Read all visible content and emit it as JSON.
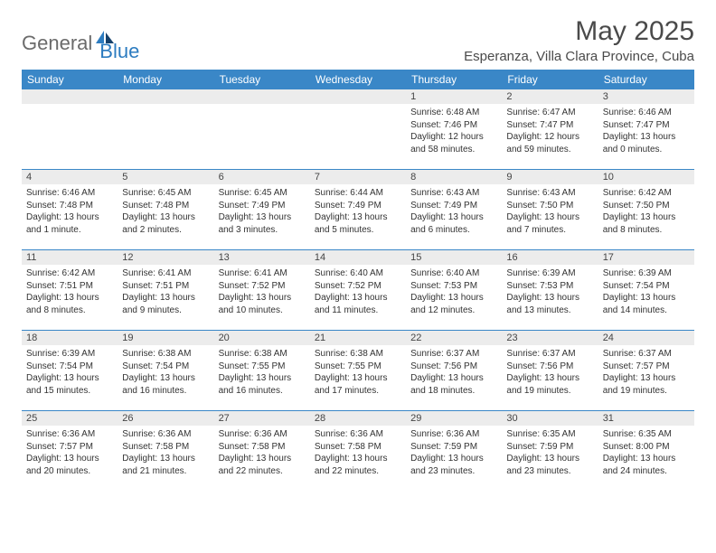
{
  "logo": {
    "text1": "General",
    "text2": "Blue"
  },
  "title": "May 2025",
  "location": "Esperanza, Villa Clara Province, Cuba",
  "colors": {
    "header_bg": "#3a87c7",
    "header_fg": "#ffffff",
    "row_divider": "#3a87c7",
    "daynum_bg": "#ececec",
    "logo_gray": "#6b6b6b",
    "logo_blue": "#2d7cc0",
    "title_color": "#4a4a4a"
  },
  "weekdays": [
    "Sunday",
    "Monday",
    "Tuesday",
    "Wednesday",
    "Thursday",
    "Friday",
    "Saturday"
  ],
  "weeks": [
    [
      {
        "n": "",
        "sr": "",
        "ss": "",
        "dl": ""
      },
      {
        "n": "",
        "sr": "",
        "ss": "",
        "dl": ""
      },
      {
        "n": "",
        "sr": "",
        "ss": "",
        "dl": ""
      },
      {
        "n": "",
        "sr": "",
        "ss": "",
        "dl": ""
      },
      {
        "n": "1",
        "sr": "Sunrise: 6:48 AM",
        "ss": "Sunset: 7:46 PM",
        "dl": "Daylight: 12 hours and 58 minutes."
      },
      {
        "n": "2",
        "sr": "Sunrise: 6:47 AM",
        "ss": "Sunset: 7:47 PM",
        "dl": "Daylight: 12 hours and 59 minutes."
      },
      {
        "n": "3",
        "sr": "Sunrise: 6:46 AM",
        "ss": "Sunset: 7:47 PM",
        "dl": "Daylight: 13 hours and 0 minutes."
      }
    ],
    [
      {
        "n": "4",
        "sr": "Sunrise: 6:46 AM",
        "ss": "Sunset: 7:48 PM",
        "dl": "Daylight: 13 hours and 1 minute."
      },
      {
        "n": "5",
        "sr": "Sunrise: 6:45 AM",
        "ss": "Sunset: 7:48 PM",
        "dl": "Daylight: 13 hours and 2 minutes."
      },
      {
        "n": "6",
        "sr": "Sunrise: 6:45 AM",
        "ss": "Sunset: 7:49 PM",
        "dl": "Daylight: 13 hours and 3 minutes."
      },
      {
        "n": "7",
        "sr": "Sunrise: 6:44 AM",
        "ss": "Sunset: 7:49 PM",
        "dl": "Daylight: 13 hours and 5 minutes."
      },
      {
        "n": "8",
        "sr": "Sunrise: 6:43 AM",
        "ss": "Sunset: 7:49 PM",
        "dl": "Daylight: 13 hours and 6 minutes."
      },
      {
        "n": "9",
        "sr": "Sunrise: 6:43 AM",
        "ss": "Sunset: 7:50 PM",
        "dl": "Daylight: 13 hours and 7 minutes."
      },
      {
        "n": "10",
        "sr": "Sunrise: 6:42 AM",
        "ss": "Sunset: 7:50 PM",
        "dl": "Daylight: 13 hours and 8 minutes."
      }
    ],
    [
      {
        "n": "11",
        "sr": "Sunrise: 6:42 AM",
        "ss": "Sunset: 7:51 PM",
        "dl": "Daylight: 13 hours and 8 minutes."
      },
      {
        "n": "12",
        "sr": "Sunrise: 6:41 AM",
        "ss": "Sunset: 7:51 PM",
        "dl": "Daylight: 13 hours and 9 minutes."
      },
      {
        "n": "13",
        "sr": "Sunrise: 6:41 AM",
        "ss": "Sunset: 7:52 PM",
        "dl": "Daylight: 13 hours and 10 minutes."
      },
      {
        "n": "14",
        "sr": "Sunrise: 6:40 AM",
        "ss": "Sunset: 7:52 PM",
        "dl": "Daylight: 13 hours and 11 minutes."
      },
      {
        "n": "15",
        "sr": "Sunrise: 6:40 AM",
        "ss": "Sunset: 7:53 PM",
        "dl": "Daylight: 13 hours and 12 minutes."
      },
      {
        "n": "16",
        "sr": "Sunrise: 6:39 AM",
        "ss": "Sunset: 7:53 PM",
        "dl": "Daylight: 13 hours and 13 minutes."
      },
      {
        "n": "17",
        "sr": "Sunrise: 6:39 AM",
        "ss": "Sunset: 7:54 PM",
        "dl": "Daylight: 13 hours and 14 minutes."
      }
    ],
    [
      {
        "n": "18",
        "sr": "Sunrise: 6:39 AM",
        "ss": "Sunset: 7:54 PM",
        "dl": "Daylight: 13 hours and 15 minutes."
      },
      {
        "n": "19",
        "sr": "Sunrise: 6:38 AM",
        "ss": "Sunset: 7:54 PM",
        "dl": "Daylight: 13 hours and 16 minutes."
      },
      {
        "n": "20",
        "sr": "Sunrise: 6:38 AM",
        "ss": "Sunset: 7:55 PM",
        "dl": "Daylight: 13 hours and 16 minutes."
      },
      {
        "n": "21",
        "sr": "Sunrise: 6:38 AM",
        "ss": "Sunset: 7:55 PM",
        "dl": "Daylight: 13 hours and 17 minutes."
      },
      {
        "n": "22",
        "sr": "Sunrise: 6:37 AM",
        "ss": "Sunset: 7:56 PM",
        "dl": "Daylight: 13 hours and 18 minutes."
      },
      {
        "n": "23",
        "sr": "Sunrise: 6:37 AM",
        "ss": "Sunset: 7:56 PM",
        "dl": "Daylight: 13 hours and 19 minutes."
      },
      {
        "n": "24",
        "sr": "Sunrise: 6:37 AM",
        "ss": "Sunset: 7:57 PM",
        "dl": "Daylight: 13 hours and 19 minutes."
      }
    ],
    [
      {
        "n": "25",
        "sr": "Sunrise: 6:36 AM",
        "ss": "Sunset: 7:57 PM",
        "dl": "Daylight: 13 hours and 20 minutes."
      },
      {
        "n": "26",
        "sr": "Sunrise: 6:36 AM",
        "ss": "Sunset: 7:58 PM",
        "dl": "Daylight: 13 hours and 21 minutes."
      },
      {
        "n": "27",
        "sr": "Sunrise: 6:36 AM",
        "ss": "Sunset: 7:58 PM",
        "dl": "Daylight: 13 hours and 22 minutes."
      },
      {
        "n": "28",
        "sr": "Sunrise: 6:36 AM",
        "ss": "Sunset: 7:58 PM",
        "dl": "Daylight: 13 hours and 22 minutes."
      },
      {
        "n": "29",
        "sr": "Sunrise: 6:36 AM",
        "ss": "Sunset: 7:59 PM",
        "dl": "Daylight: 13 hours and 23 minutes."
      },
      {
        "n": "30",
        "sr": "Sunrise: 6:35 AM",
        "ss": "Sunset: 7:59 PM",
        "dl": "Daylight: 13 hours and 23 minutes."
      },
      {
        "n": "31",
        "sr": "Sunrise: 6:35 AM",
        "ss": "Sunset: 8:00 PM",
        "dl": "Daylight: 13 hours and 24 minutes."
      }
    ]
  ]
}
